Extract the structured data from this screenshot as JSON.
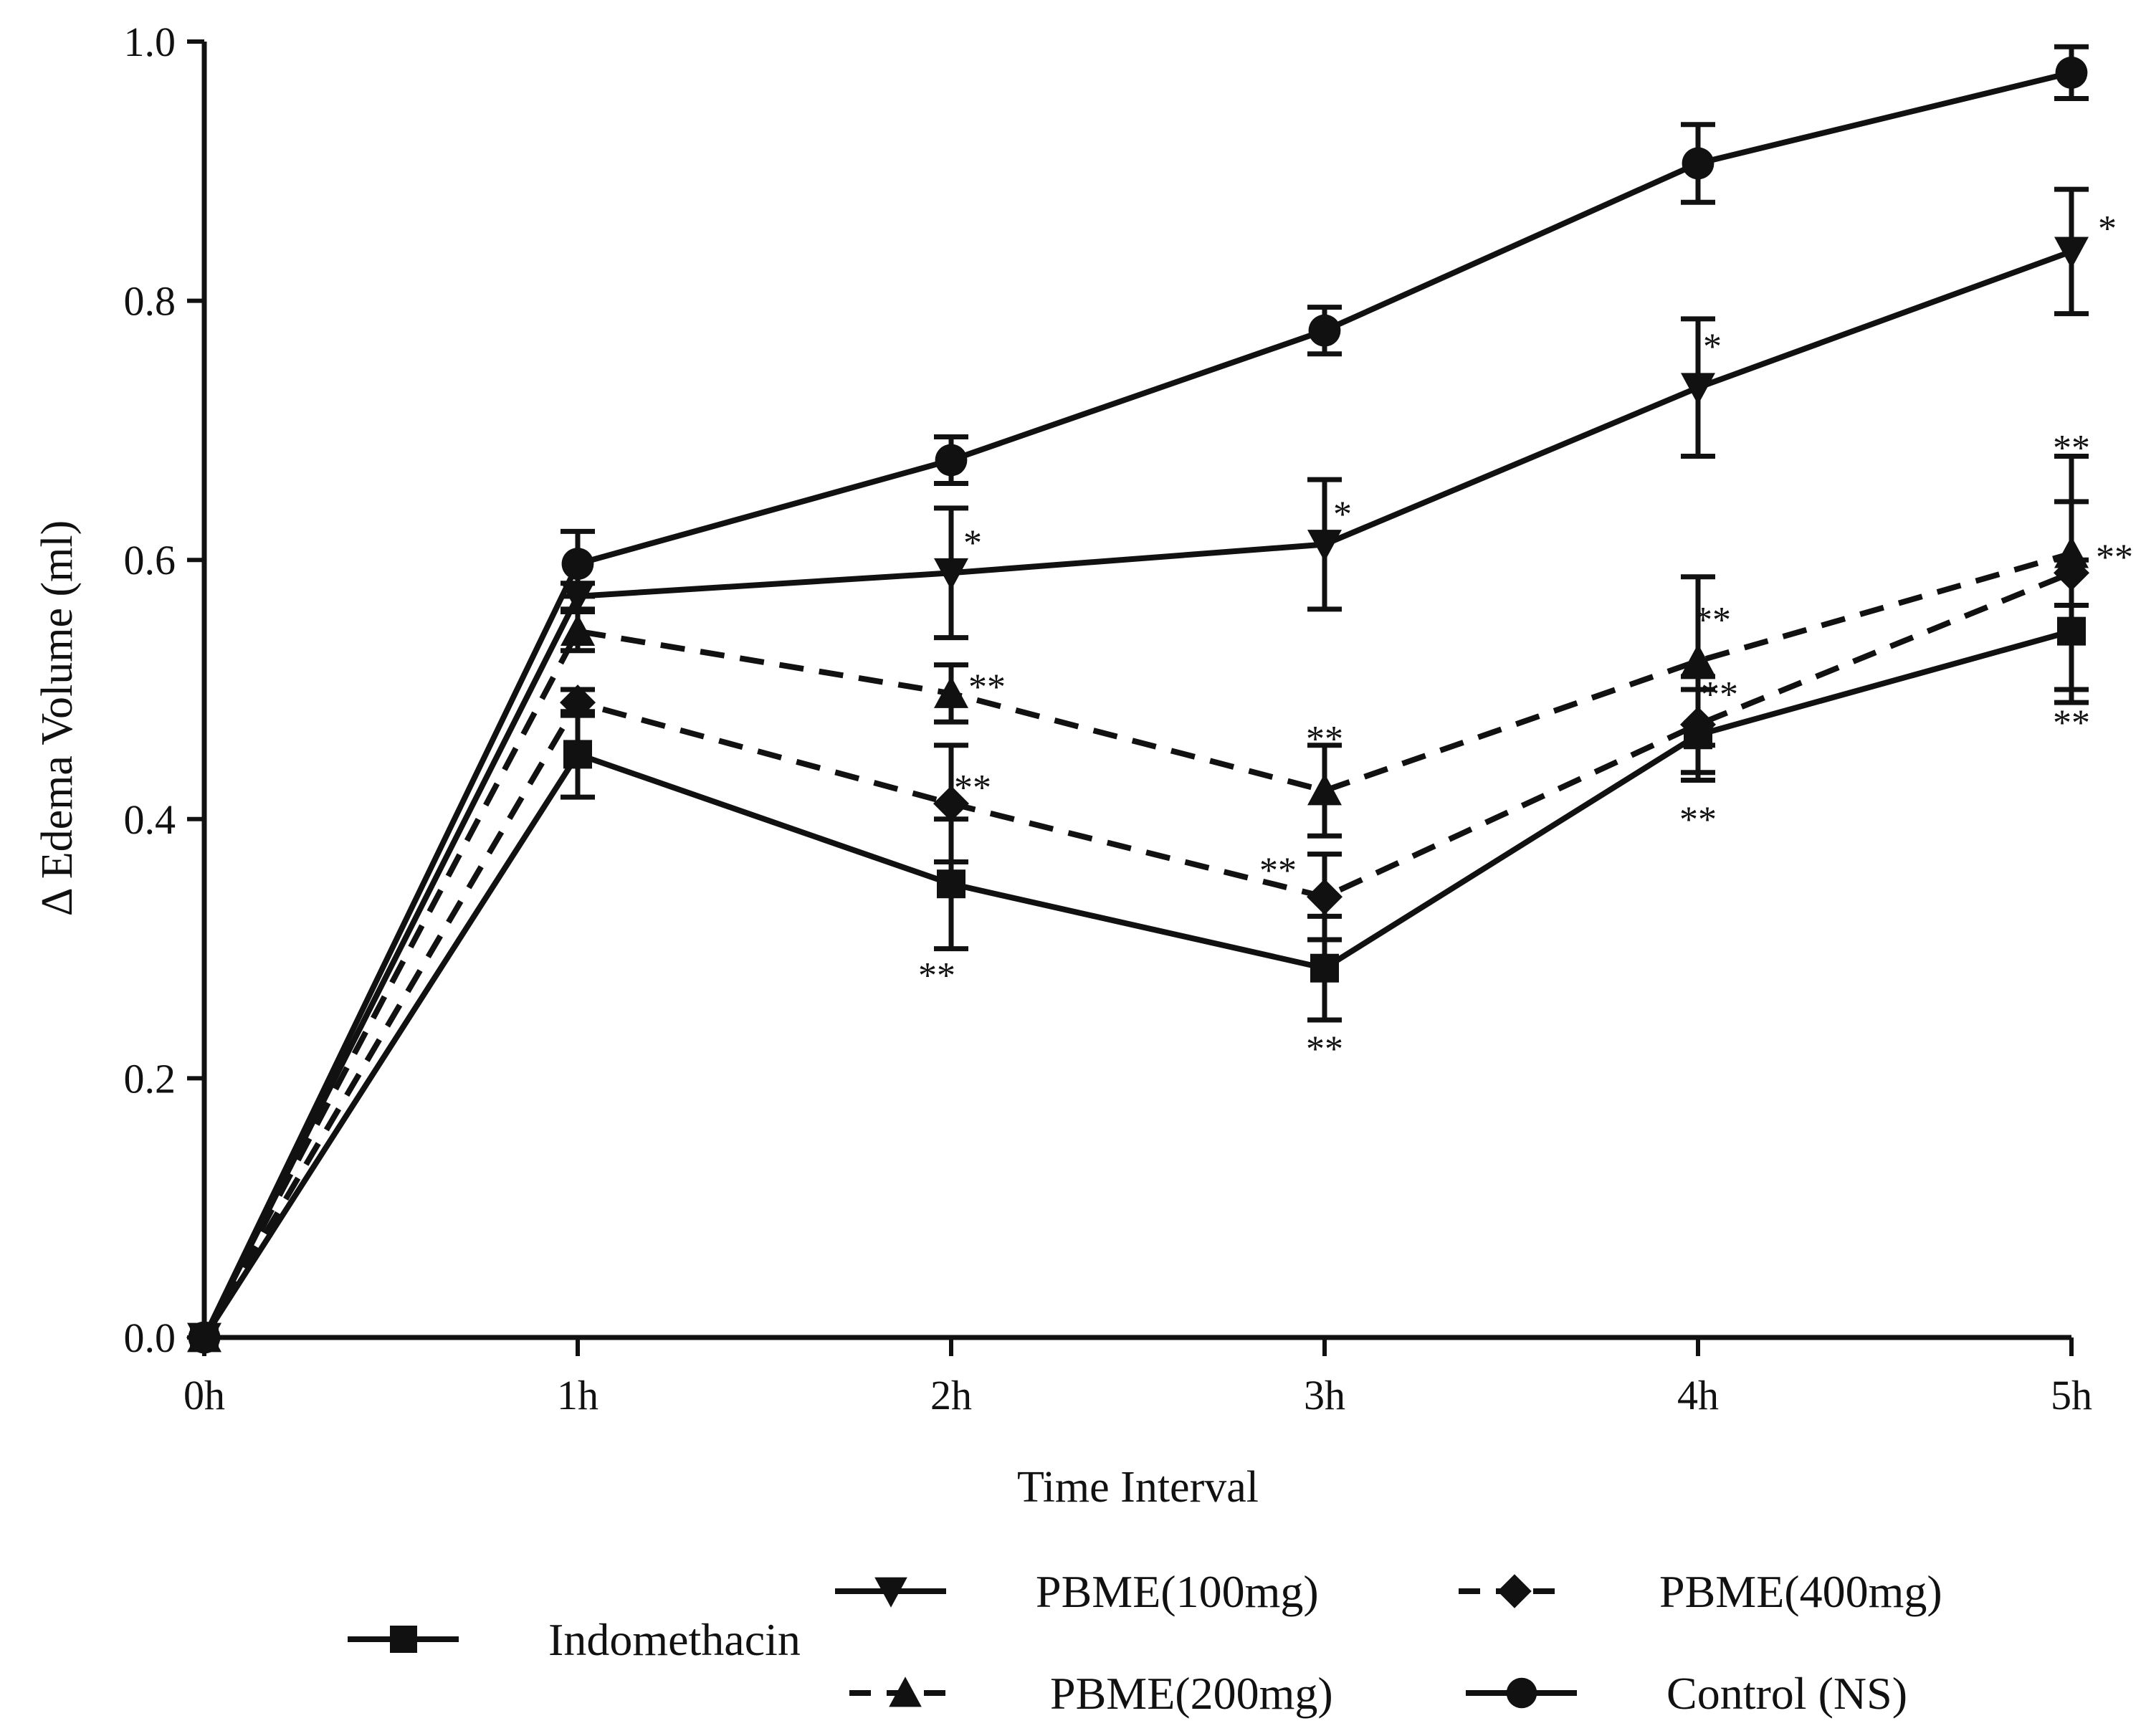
{
  "chart_data": {
    "type": "line",
    "title": "",
    "xlabel": "Time Interval",
    "ylabel": "Δ Edema Volume (ml)",
    "categories": [
      "0h",
      "1h",
      "2h",
      "3h",
      "4h",
      "5h"
    ],
    "ylim": [
      0,
      1.0
    ],
    "yticks": [
      "0.0",
      "0.2",
      "0.4",
      "0.6",
      "0.8",
      "1.0"
    ],
    "grid": false,
    "legend_position": "bottom",
    "series": [
      {
        "name": "Indomethacin",
        "marker": "square",
        "dash": "solid",
        "values": [
          0.0,
          0.45,
          0.35,
          0.285,
          0.465,
          0.545
        ],
        "errors": [
          0.0,
          0.033,
          0.05,
          0.04,
          0.035,
          0.055
        ],
        "significance": [
          "",
          "",
          "**",
          "**",
          "**",
          "**"
        ]
      },
      {
        "name": "PBME(100mg)",
        "marker": "triangle-down",
        "dash": "solid",
        "values": [
          0.0,
          0.572,
          0.59,
          0.612,
          0.733,
          0.838
        ],
        "errors": [
          0.0,
          0.01,
          0.05,
          0.05,
          0.053,
          0.048
        ],
        "significance": [
          "",
          "",
          "*",
          "*",
          "*",
          "*"
        ]
      },
      {
        "name": "PBME(200mg)",
        "marker": "triangle-up",
        "dash": "dashed",
        "values": [
          0.0,
          0.545,
          0.497,
          0.422,
          0.522,
          0.605
        ],
        "errors": [
          0.0,
          0.015,
          0.022,
          0.035,
          0.065,
          0.04
        ],
        "significance": [
          "",
          "",
          "**",
          "**",
          "**",
          "**"
        ]
      },
      {
        "name": "PBME(400mg)",
        "marker": "diamond",
        "dash": "dashed",
        "values": [
          0.0,
          0.49,
          0.412,
          0.34,
          0.473,
          0.59
        ],
        "errors": [
          0.0,
          0.01,
          0.045,
          0.033,
          0.037,
          0.09
        ],
        "significance": [
          "",
          "",
          "**",
          "**",
          "**",
          "**"
        ]
      },
      {
        "name": "Control (NS)",
        "marker": "circle",
        "dash": "solid",
        "values": [
          0.0,
          0.597,
          0.677,
          0.777,
          0.906,
          0.976
        ],
        "errors": [
          0.0,
          0.025,
          0.018,
          0.018,
          0.03,
          0.02
        ],
        "significance": [
          "",
          "",
          "",
          "",
          "",
          ""
        ]
      }
    ]
  }
}
